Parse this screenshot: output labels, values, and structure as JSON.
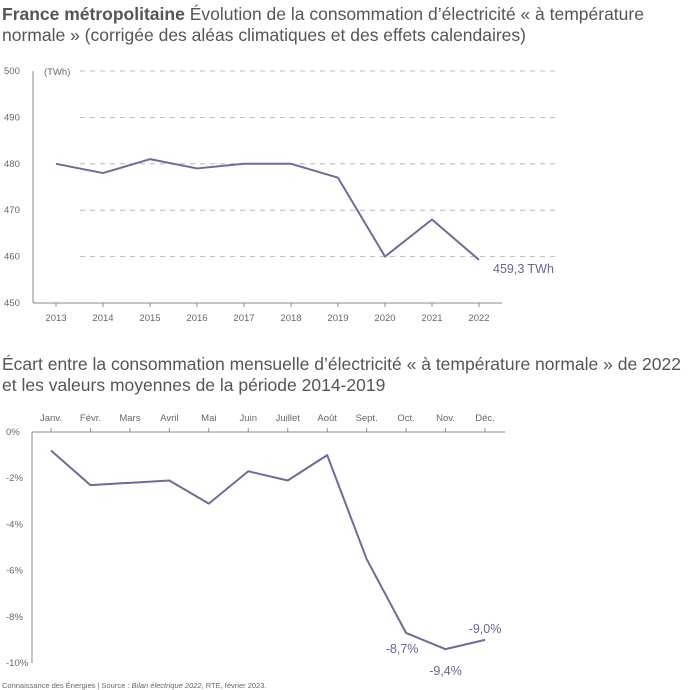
{
  "titles": {
    "chart1_bold": "France métropolitaine",
    "chart1_rest": " Évolution de la consommation d’électricité « à température normale » (corrigée des aléas climatiques et des effets calendaires)",
    "chart2": "Écart entre la consommation mensuelle d’électricité « à température normale » de 2022 et les valeurs moyennes de la période 2014-2019"
  },
  "footer": {
    "prefix": "Connaissance des Énergies | Source : ",
    "source_italic": "Bilan électrique 2022",
    "suffix": ", RTE, février 2023."
  },
  "colors": {
    "line": "#6e6a9b",
    "axis": "#888888",
    "grid": "#aaaaaa",
    "text": "#555555"
  },
  "chart_data": [
    {
      "type": "line",
      "title": "France métropolitaine Évolution de la consommation d’électricité « à température normale » (corrigée des aléas climatiques et des effets calendaires)",
      "unit_label": "(TWh)",
      "x": [
        "2013",
        "2014",
        "2015",
        "2016",
        "2017",
        "2018",
        "2019",
        "2020",
        "2021",
        "2022"
      ],
      "series": [
        {
          "values": [
            480,
            478,
            481,
            479,
            480,
            480,
            477,
            460,
            468,
            459.3
          ]
        }
      ],
      "yticks": [
        "450",
        "460",
        "470",
        "480",
        "490",
        "500"
      ],
      "ylim": [
        450,
        500
      ],
      "grid": "dashed horizontal",
      "annotations": [
        {
          "x": "2022",
          "text": "459,3 TWh"
        }
      ]
    },
    {
      "type": "line",
      "title": "Écart entre la consommation mensuelle d’électricité « à température normale » de 2022 et les valeurs moyennes de la période 2014-2019",
      "x": [
        "Janv.",
        "Févr.",
        "Mars",
        "Avril",
        "Mai",
        "Juin",
        "Juillet",
        "Août",
        "Sept.",
        "Oct.",
        "Nov.",
        "Déc."
      ],
      "series": [
        {
          "values": [
            -0.8,
            -2.3,
            -2.2,
            -2.1,
            -3.1,
            -1.7,
            -2.1,
            -1.0,
            -5.5,
            -8.7,
            -9.4,
            -9.0
          ]
        }
      ],
      "yticks": [
        "0%",
        "-2%",
        "-4%",
        "-6%",
        "-8%",
        "-10%"
      ],
      "ylim": [
        -10,
        0
      ],
      "grid": "off",
      "annotations": [
        {
          "x": "Oct.",
          "text": "-8,7%"
        },
        {
          "x": "Nov.",
          "text": "-9,4%"
        },
        {
          "x": "Déc.",
          "text": "-9,0%"
        }
      ]
    }
  ]
}
